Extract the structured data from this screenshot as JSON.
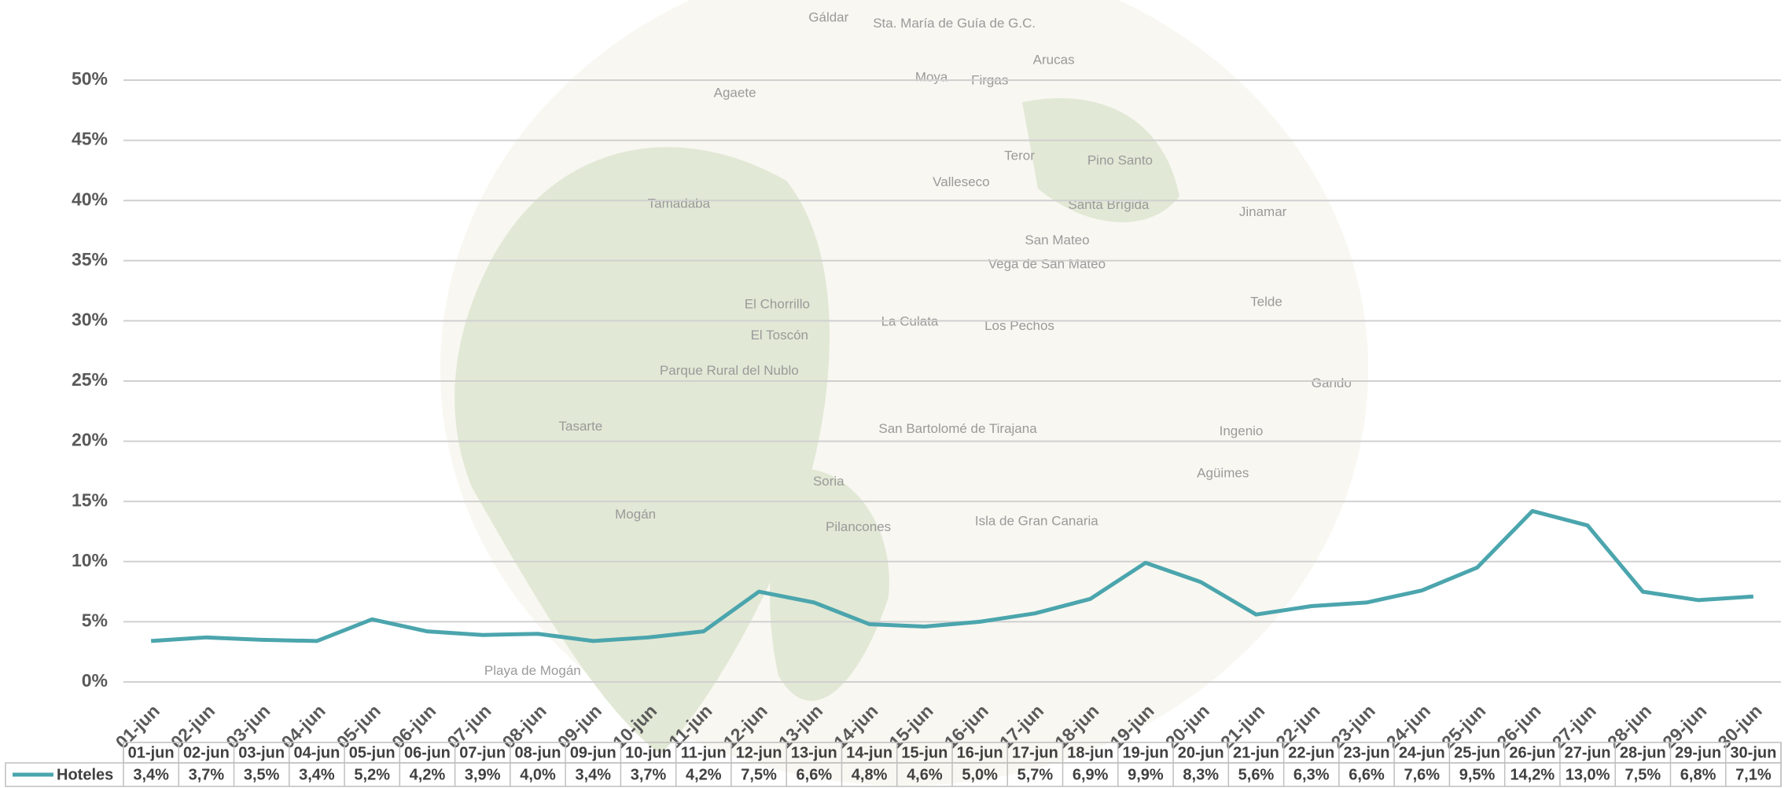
{
  "chart_data": {
    "type": "line",
    "categories": [
      "01-jun",
      "02-jun",
      "03-jun",
      "04-jun",
      "05-jun",
      "06-jun",
      "07-jun",
      "08-jun",
      "09-jun",
      "10-jun",
      "11-jun",
      "12-jun",
      "13-jun",
      "14-jun",
      "15-jun",
      "16-jun",
      "17-jun",
      "18-jun",
      "19-jun",
      "20-jun",
      "21-jun",
      "22-jun",
      "23-jun",
      "24-jun",
      "25-jun",
      "26-jun",
      "27-jun",
      "28-jun",
      "29-jun",
      "30-jun"
    ],
    "series": [
      {
        "name": "Hoteles",
        "color": "#4ba5ad",
        "values": [
          3.4,
          3.7,
          3.5,
          3.4,
          5.2,
          4.2,
          3.9,
          4.0,
          3.4,
          3.7,
          4.2,
          7.5,
          6.6,
          4.8,
          4.6,
          5.0,
          5.7,
          6.9,
          9.9,
          8.3,
          5.6,
          6.3,
          6.6,
          7.6,
          9.5,
          14.2,
          13.0,
          7.5,
          6.8,
          7.1
        ],
        "value_labels": [
          "3,4%",
          "3,7%",
          "3,5%",
          "3,4%",
          "5,2%",
          "4,2%",
          "3,9%",
          "4,0%",
          "3,4%",
          "3,7%",
          "4,2%",
          "7,5%",
          "6,6%",
          "4,8%",
          "4,6%",
          "5,0%",
          "5,7%",
          "6,9%",
          "9,9%",
          "8,3%",
          "5,6%",
          "6,3%",
          "6,6%",
          "7,6%",
          "9,5%",
          "14,2%",
          "13,0%",
          "7,5%",
          "6,8%",
          "7,1%"
        ]
      }
    ],
    "ylim": [
      0,
      50
    ],
    "yticks": [
      {
        "value": 0,
        "label": "0%"
      },
      {
        "value": 5,
        "label": "5%"
      },
      {
        "value": 10,
        "label": "10%"
      },
      {
        "value": 15,
        "label": "15%"
      },
      {
        "value": 20,
        "label": "20%"
      },
      {
        "value": 25,
        "label": "25%"
      },
      {
        "value": 30,
        "label": "30%"
      },
      {
        "value": 35,
        "label": "35%"
      },
      {
        "value": 40,
        "label": "40%"
      },
      {
        "value": 45,
        "label": "45%"
      },
      {
        "value": 50,
        "label": "50%"
      }
    ],
    "grid": true,
    "legend": "bottom-left",
    "data_table": true,
    "background_map_labels": [
      "Gáldar",
      "Sta. María de Guía de G.C.",
      "Arucas",
      "Moya",
      "Firgas",
      "Agaete",
      "Teror",
      "Valleseco",
      "Pino Santo",
      "Santa Brígida",
      "Tamadaba",
      "San Mateo",
      "Vega de San Mateo",
      "Jinamar",
      "El Chorrillo",
      "El Toscón",
      "La Culata",
      "Los Pechos",
      "Telde",
      "Parque Rural del Nublo",
      "Tasarte",
      "San Bartolomé de Tirajana",
      "Ingenio",
      "Agüimes",
      "Soria",
      "Mogán",
      "Pilancones",
      "Isla de Gran Canaria",
      "Playa de Mogán",
      "Gando"
    ]
  }
}
